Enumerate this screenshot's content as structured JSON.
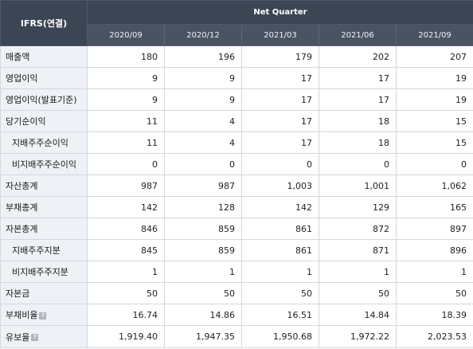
{
  "header": {
    "corner": "IFRS(연결)",
    "group": "Net Quarter",
    "periods": [
      "2020/09",
      "2020/12",
      "2021/03",
      "2021/06",
      "2021/09"
    ]
  },
  "rows": [
    {
      "label": "매출액",
      "indent": false,
      "help": false,
      "values": [
        "180",
        "196",
        "179",
        "202",
        "207"
      ]
    },
    {
      "label": "영업이익",
      "indent": false,
      "help": false,
      "values": [
        "9",
        "9",
        "17",
        "17",
        "19"
      ]
    },
    {
      "label": "영업이익(발표기준)",
      "indent": false,
      "help": false,
      "values": [
        "9",
        "9",
        "17",
        "17",
        "19"
      ]
    },
    {
      "label": "당기순이익",
      "indent": false,
      "help": false,
      "values": [
        "11",
        "4",
        "17",
        "18",
        "15"
      ]
    },
    {
      "label": "지배주주순이익",
      "indent": true,
      "help": false,
      "values": [
        "11",
        "4",
        "17",
        "18",
        "15"
      ]
    },
    {
      "label": "비지배주주순이익",
      "indent": true,
      "help": false,
      "values": [
        "0",
        "0",
        "0",
        "0",
        "0"
      ]
    },
    {
      "label": "자산총계",
      "indent": false,
      "help": false,
      "values": [
        "987",
        "987",
        "1,003",
        "1,001",
        "1,062"
      ]
    },
    {
      "label": "부채총계",
      "indent": false,
      "help": false,
      "values": [
        "142",
        "128",
        "142",
        "129",
        "165"
      ]
    },
    {
      "label": "자본총계",
      "indent": false,
      "help": false,
      "values": [
        "846",
        "859",
        "861",
        "872",
        "897"
      ]
    },
    {
      "label": "지배주주지분",
      "indent": true,
      "help": false,
      "values": [
        "845",
        "859",
        "861",
        "871",
        "896"
      ]
    },
    {
      "label": "비지배주주지분",
      "indent": true,
      "help": false,
      "values": [
        "1",
        "1",
        "1",
        "1",
        "1"
      ]
    },
    {
      "label": "자본금",
      "indent": false,
      "help": false,
      "values": [
        "50",
        "50",
        "50",
        "50",
        "50"
      ]
    },
    {
      "label": "부채비율",
      "indent": false,
      "help": true,
      "values": [
        "16.74",
        "14.86",
        "16.51",
        "14.84",
        "18.39"
      ]
    },
    {
      "label": "유보율",
      "indent": false,
      "help": true,
      "values": [
        "1,919.40",
        "1,947.35",
        "1,950.68",
        "1,972.22",
        "2,023.53"
      ]
    }
  ],
  "help_icon_glyph": "?"
}
